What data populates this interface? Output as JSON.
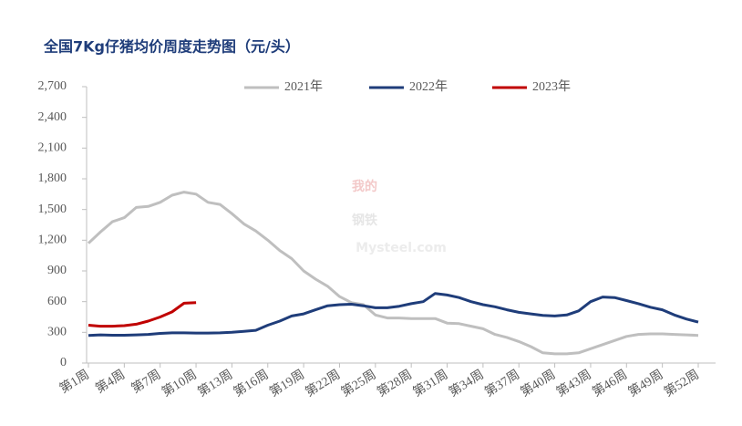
{
  "chart_data": {
    "type": "line",
    "title": "全国7Kg仔猪均价周度走势图（元/头）",
    "watermark": [
      "我的",
      "钢铁",
      "Mysteel.com"
    ],
    "categories": [
      "第1周",
      null,
      null,
      "第4周",
      null,
      null,
      "第7周",
      null,
      null,
      "第10周",
      null,
      null,
      "第13周",
      null,
      null,
      "第16周",
      null,
      null,
      "第19周",
      null,
      null,
      "第22周",
      null,
      null,
      "第25周",
      null,
      null,
      "第28周",
      null,
      null,
      "第31周",
      null,
      null,
      "第34周",
      null,
      null,
      "第37周",
      null,
      null,
      "第40周",
      null,
      null,
      "第43周",
      null,
      null,
      "第46周",
      null,
      null,
      "第49周",
      null,
      null,
      "第52周"
    ],
    "series": [
      {
        "name": "2021年",
        "color": "#bfbfbf",
        "values": [
          1170,
          1280,
          1380,
          1420,
          1520,
          1530,
          1570,
          1640,
          1670,
          1650,
          1570,
          1550,
          1460,
          1360,
          1290,
          1200,
          1100,
          1020,
          900,
          820,
          750,
          650,
          590,
          570,
          470,
          440,
          440,
          435,
          435,
          435,
          390,
          385,
          360,
          335,
          280,
          250,
          210,
          160,
          100,
          90,
          90,
          100,
          140,
          180,
          220,
          260,
          280,
          285,
          285,
          280,
          275,
          270
        ]
      },
      {
        "name": "2022年",
        "color": "#1f3d7a",
        "values": [
          270,
          275,
          272,
          272,
          275,
          280,
          290,
          295,
          295,
          293,
          293,
          295,
          300,
          310,
          320,
          370,
          410,
          460,
          480,
          520,
          560,
          570,
          575,
          560,
          540,
          540,
          555,
          580,
          600,
          680,
          665,
          640,
          600,
          570,
          550,
          520,
          495,
          480,
          465,
          460,
          470,
          510,
          600,
          645,
          640,
          610,
          580,
          545,
          520,
          470,
          430,
          400
        ]
      },
      {
        "name": "2023年",
        "color": "#c00000",
        "values": [
          370,
          360,
          360,
          365,
          380,
          410,
          450,
          500,
          585,
          590,
          null,
          null,
          null,
          null,
          null,
          null,
          null,
          null,
          null,
          null,
          null,
          null,
          null,
          null,
          null,
          null,
          null,
          null,
          null,
          null,
          null,
          null,
          null,
          null,
          null,
          null,
          null,
          null,
          null,
          null,
          null,
          null,
          null,
          null,
          null,
          null,
          null,
          null,
          null,
          null,
          null,
          null
        ]
      }
    ],
    "ylim": [
      0,
      2700
    ],
    "yticks": [
      0,
      300,
      600,
      900,
      {
        "value": 1200,
        "label": "1,200"
      },
      {
        "value": 1500,
        "label": "1,500"
      },
      {
        "value": 1800,
        "label": "1,800"
      },
      {
        "value": 2100,
        "label": "2,100"
      },
      {
        "value": 2400,
        "label": "2,400"
      },
      {
        "value": 2700,
        "label": "2,700"
      }
    ],
    "legend": "top",
    "grid": false
  }
}
